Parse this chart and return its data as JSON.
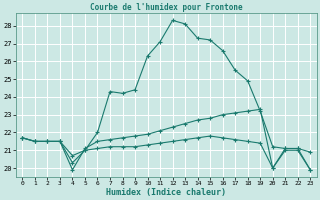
{
  "title": "Courbe de l'humidex pour Frontone",
  "xlabel": "Humidex (Indice chaleur)",
  "bg_color": "#cce8e4",
  "grid_color": "#ffffff",
  "line_color": "#1a7a6e",
  "xlim": [
    -0.5,
    23.5
  ],
  "ylim": [
    19.5,
    28.7
  ],
  "xticks": [
    0,
    1,
    2,
    3,
    4,
    5,
    6,
    7,
    8,
    9,
    10,
    11,
    12,
    13,
    14,
    15,
    16,
    17,
    18,
    19,
    20,
    21,
    22,
    23
  ],
  "yticks": [
    20,
    21,
    22,
    23,
    24,
    25,
    26,
    27,
    28
  ],
  "series": [
    {
      "x": [
        0,
        1,
        2,
        3,
        4,
        5,
        6,
        7,
        8,
        9,
        10,
        11,
        12,
        13,
        14,
        15,
        16,
        17,
        18,
        19,
        20,
        21,
        22,
        23
      ],
      "y": [
        21.7,
        21.5,
        21.5,
        21.5,
        20.7,
        21.0,
        22.0,
        24.3,
        24.2,
        24.4,
        26.3,
        27.1,
        28.3,
        28.1,
        27.3,
        27.2,
        26.6,
        25.5,
        24.9,
        23.2,
        21.2,
        21.1,
        21.1,
        20.9
      ]
    },
    {
      "x": [
        0,
        1,
        2,
        3,
        4,
        5,
        6,
        7,
        8,
        9,
        10,
        11,
        12,
        13,
        14,
        15,
        16,
        17,
        18,
        19,
        20,
        21,
        22,
        23
      ],
      "y": [
        21.7,
        21.5,
        21.5,
        21.5,
        19.9,
        21.1,
        21.5,
        21.6,
        21.7,
        21.8,
        21.9,
        22.1,
        22.3,
        22.5,
        22.7,
        22.8,
        23.0,
        23.1,
        23.2,
        23.3,
        20.0,
        21.1,
        21.1,
        19.9
      ]
    },
    {
      "x": [
        0,
        1,
        2,
        3,
        4,
        5,
        6,
        7,
        8,
        9,
        10,
        11,
        12,
        13,
        14,
        15,
        16,
        17,
        18,
        19,
        20,
        21,
        22,
        23
      ],
      "y": [
        21.7,
        21.5,
        21.5,
        21.5,
        20.3,
        21.0,
        21.1,
        21.2,
        21.2,
        21.2,
        21.3,
        21.4,
        21.5,
        21.6,
        21.7,
        21.8,
        21.7,
        21.6,
        21.5,
        21.4,
        20.0,
        21.0,
        21.0,
        19.9
      ]
    }
  ]
}
